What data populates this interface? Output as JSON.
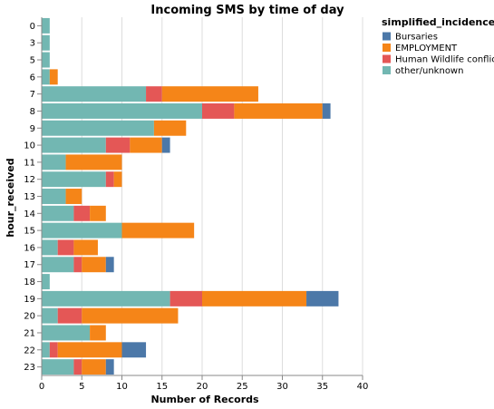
{
  "chart_data": {
    "type": "bar",
    "orientation": "horizontal",
    "stacked": true,
    "title": "Incoming SMS by time of day",
    "xlabel": "Number of Records",
    "ylabel": "hour_received",
    "xlim": [
      0,
      40
    ],
    "x_ticks": [
      0,
      5,
      10,
      15,
      20,
      25,
      30,
      35,
      40
    ],
    "grid": true,
    "legend": {
      "title": "simplified_incidence",
      "placement": "right",
      "entries": [
        "Bursaries",
        "EMPLOYMENT",
        "Human Wildlife conflict",
        "other/unknown"
      ]
    },
    "categories": [
      "0",
      "3",
      "5",
      "6",
      "7",
      "8",
      "9",
      "10",
      "11",
      "12",
      "13",
      "14",
      "15",
      "16",
      "17",
      "18",
      "19",
      "20",
      "21",
      "22",
      "23"
    ],
    "series": [
      {
        "name": "other/unknown",
        "color": "#72b7b2",
        "values": [
          1,
          1,
          1,
          1,
          13,
          20,
          14,
          8,
          3,
          8,
          3,
          4,
          10,
          2,
          4,
          1,
          16,
          2,
          6,
          1,
          4
        ]
      },
      {
        "name": "Human Wildlife conflict",
        "color": "#e45756",
        "values": [
          0,
          0,
          0,
          0,
          2,
          4,
          0,
          3,
          0,
          1,
          0,
          2,
          0,
          2,
          1,
          0,
          4,
          3,
          0,
          1,
          1
        ]
      },
      {
        "name": "EMPLOYMENT",
        "color": "#f58518",
        "values": [
          0,
          0,
          0,
          1,
          12,
          11,
          4,
          4,
          7,
          1,
          2,
          2,
          9,
          3,
          3,
          0,
          13,
          12,
          2,
          8,
          3
        ]
      },
      {
        "name": "Bursaries",
        "color": "#4c78a8",
        "values": [
          0,
          0,
          0,
          0,
          0,
          1,
          0,
          1,
          0,
          0,
          0,
          0,
          0,
          0,
          1,
          0,
          4,
          0,
          0,
          3,
          1
        ]
      }
    ]
  }
}
